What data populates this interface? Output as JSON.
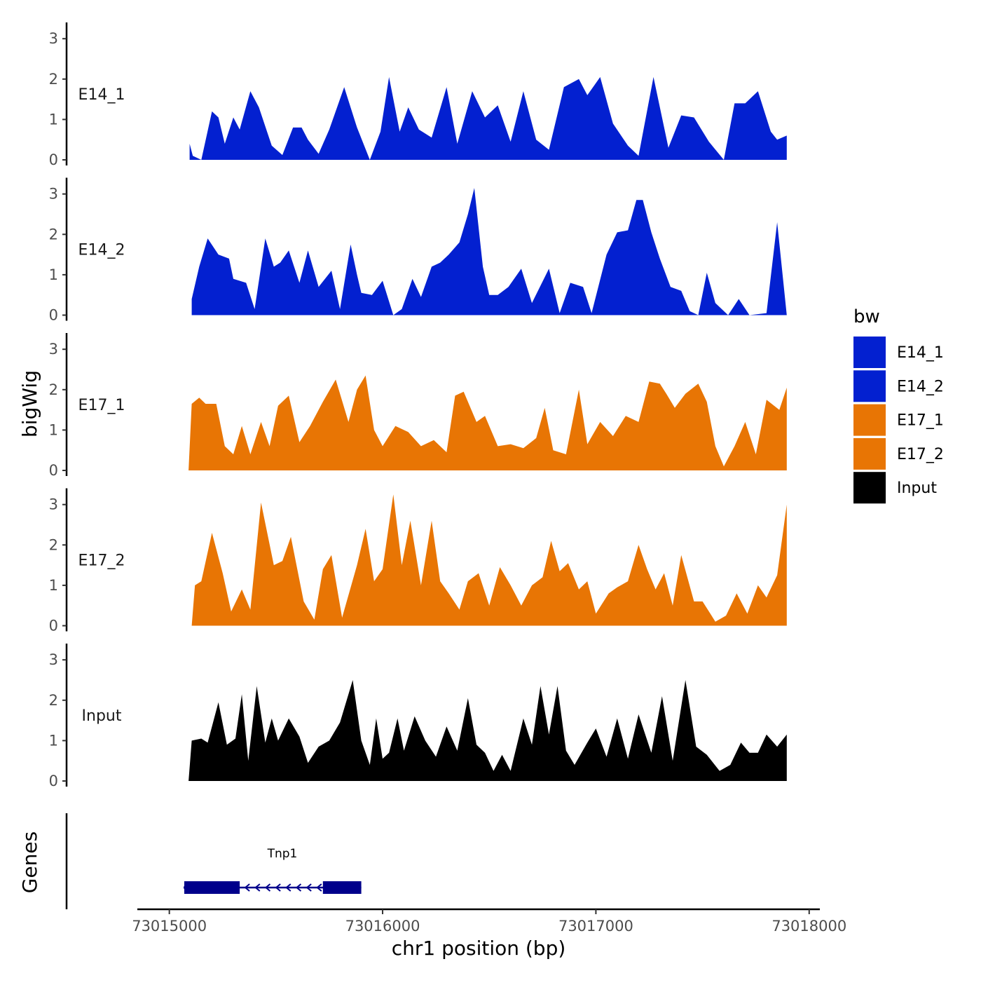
{
  "chart_data": {
    "type": "area",
    "y_axis_title": "bigWig",
    "x_axis_title": "chr1 position (bp)",
    "genes_axis_title": "Genes",
    "legend": {
      "title": "bw",
      "position": "right",
      "entries": [
        {
          "name": "E14_1",
          "color": "#0320d0"
        },
        {
          "name": "E14_2",
          "color": "#0320d0"
        },
        {
          "name": "E17_1",
          "color": "#e87504"
        },
        {
          "name": "E17_2",
          "color": "#e87504"
        },
        {
          "name": "Input",
          "color": "#000000"
        }
      ]
    },
    "ylim": [
      0,
      3.4
    ],
    "y_ticks": [
      "0",
      "1",
      "2",
      "3"
    ],
    "xlim": [
      73014850,
      73018050
    ],
    "x_ticks": [
      {
        "value": 73015000,
        "label": "73015000"
      },
      {
        "value": 73016000,
        "label": "73016000"
      },
      {
        "value": 73017000,
        "label": "73017000"
      },
      {
        "value": 73018000,
        "label": "73018000"
      }
    ],
    "tracks": [
      {
        "name": "E14_1",
        "color": "#0320d0",
        "x": [
          73015095,
          73015110,
          73015150,
          73015200,
          73015230,
          73015260,
          73015300,
          73015330,
          73015380,
          73015420,
          73015480,
          73015530,
          73015580,
          73015620,
          73015650,
          73015700,
          73015750,
          73015820,
          73015880,
          73015940,
          73015990,
          73016030,
          73016080,
          73016120,
          73016170,
          73016230,
          73016300,
          73016350,
          73016420,
          73016480,
          73016540,
          73016600,
          73016660,
          73016720,
          73016780,
          73016850,
          73016920,
          73016960,
          73017020,
          73017080,
          73017150,
          73017200,
          73017270,
          73017340,
          73017400,
          73017460,
          73017530,
          73017600,
          73017650,
          73017700,
          73017760,
          73017820,
          73017850,
          73017895
        ],
        "y": [
          0.4,
          0.1,
          0,
          1.2,
          1.05,
          0.4,
          1.05,
          0.75,
          1.7,
          1.3,
          0.35,
          0.12,
          0.8,
          0.8,
          0.5,
          0.15,
          0.75,
          1.8,
          0.8,
          0,
          0.7,
          2.05,
          0.7,
          1.3,
          0.75,
          0.55,
          1.8,
          0.4,
          1.7,
          1.05,
          1.35,
          0.45,
          1.7,
          0.5,
          0.25,
          1.8,
          2.0,
          1.6,
          2.05,
          0.9,
          0.35,
          0.1,
          2.05,
          0.3,
          1.1,
          1.05,
          0.45,
          0,
          1.4,
          1.4,
          1.7,
          0.7,
          0.5,
          0.6
        ]
      },
      {
        "name": "E14_2",
        "color": "#0320d0",
        "x": [
          73015105,
          73015140,
          73015180,
          73015230,
          73015280,
          73015300,
          73015360,
          73015400,
          73015450,
          73015490,
          73015520,
          73015560,
          73015610,
          73015650,
          73015700,
          73015760,
          73015800,
          73015850,
          73015880,
          73015900,
          73015950,
          73016000,
          73016050,
          73016090,
          73016140,
          73016180,
          73016230,
          73016270,
          73016310,
          73016360,
          73016400,
          73016430,
          73016470,
          73016500,
          73016540,
          73016590,
          73016650,
          73016700,
          73016780,
          73016830,
          73016880,
          73016940,
          73016980,
          73017050,
          73017100,
          73017150,
          73017190,
          73017220,
          73017260,
          73017300,
          73017350,
          73017400,
          73017440,
          73017480,
          73017520,
          73017560,
          73017620,
          73017670,
          73017720,
          73017800,
          73017850,
          73017895
        ],
        "y": [
          0.4,
          1.2,
          1.9,
          1.5,
          1.4,
          0.9,
          0.8,
          0.15,
          1.9,
          1.2,
          1.3,
          1.6,
          0.8,
          1.6,
          0.7,
          1.1,
          0.15,
          1.75,
          1.0,
          0.55,
          0.5,
          0.85,
          0,
          0.15,
          0.9,
          0.45,
          1.2,
          1.3,
          1.5,
          1.8,
          2.5,
          3.15,
          1.2,
          0.5,
          0.5,
          0.7,
          1.15,
          0.3,
          1.15,
          0.05,
          0.8,
          0.7,
          0.05,
          1.5,
          2.05,
          2.1,
          2.85,
          2.85,
          2.05,
          1.4,
          0.7,
          0.6,
          0.1,
          0,
          1.05,
          0.3,
          0,
          0.4,
          0,
          0.05,
          2.3,
          0
        ]
      },
      {
        "name": "E17_1",
        "color": "#e87504",
        "x": [
          73015090,
          73015105,
          73015140,
          73015170,
          73015220,
          73015260,
          73015300,
          73015340,
          73015380,
          73015430,
          73015470,
          73015510,
          73015560,
          73015610,
          73015660,
          73015720,
          73015780,
          73015840,
          73015880,
          73015920,
          73015960,
          73016000,
          73016060,
          73016120,
          73016180,
          73016240,
          73016300,
          73016340,
          73016380,
          73016440,
          73016480,
          73016540,
          73016600,
          73016660,
          73016720,
          73016760,
          73016800,
          73016860,
          73016920,
          73016960,
          73017020,
          73017080,
          73017140,
          73017200,
          73017250,
          73017300,
          73017330,
          73017370,
          73017420,
          73017480,
          73017520,
          73017560,
          73017600,
          73017650,
          73017700,
          73017750,
          73017800,
          73017860,
          73017895
        ],
        "y": [
          0,
          1.65,
          1.8,
          1.65,
          1.65,
          0.6,
          0.4,
          1.1,
          0.4,
          1.2,
          0.6,
          1.6,
          1.85,
          0.7,
          1.1,
          1.7,
          2.25,
          1.2,
          2.0,
          2.35,
          1.0,
          0.6,
          1.1,
          0.95,
          0.6,
          0.75,
          0.45,
          1.85,
          1.95,
          1.2,
          1.35,
          0.6,
          0.65,
          0.55,
          0.8,
          1.55,
          0.5,
          0.4,
          2.0,
          0.65,
          1.2,
          0.85,
          1.35,
          1.2,
          2.2,
          2.15,
          1.9,
          1.55,
          1.9,
          2.15,
          1.7,
          0.6,
          0.1,
          0.6,
          1.2,
          0.4,
          1.75,
          1.5,
          2.05
        ]
      },
      {
        "name": "E17_2",
        "color": "#e87504",
        "x": [
          73015105,
          73015120,
          73015150,
          73015200,
          73015250,
          73015290,
          73015340,
          73015380,
          73015430,
          73015490,
          73015530,
          73015570,
          73015630,
          73015680,
          73015720,
          73015760,
          73015810,
          73015880,
          73015920,
          73015960,
          73016000,
          73016050,
          73016090,
          73016130,
          73016180,
          73016230,
          73016270,
          73016310,
          73016360,
          73016400,
          73016450,
          73016500,
          73016550,
          73016600,
          73016650,
          73016700,
          73016750,
          73016790,
          73016830,
          73016870,
          73016920,
          73016960,
          73017000,
          73017060,
          73017100,
          73017150,
          73017200,
          73017240,
          73017280,
          73017320,
          73017360,
          73017400,
          73017460,
          73017500,
          73017560,
          73017610,
          73017660,
          73017710,
          73017760,
          73017800,
          73017850,
          73017895
        ],
        "y": [
          0,
          1.0,
          1.1,
          2.3,
          1.3,
          0.35,
          0.9,
          0.4,
          3.05,
          1.5,
          1.6,
          2.2,
          0.6,
          0.15,
          1.4,
          1.75,
          0.2,
          1.5,
          2.4,
          1.1,
          1.4,
          3.25,
          1.5,
          2.6,
          1.0,
          2.6,
          1.1,
          0.8,
          0.4,
          1.1,
          1.3,
          0.5,
          1.45,
          1.0,
          0.5,
          1.0,
          1.2,
          2.1,
          1.35,
          1.55,
          0.9,
          1.1,
          0.3,
          0.8,
          0.95,
          1.1,
          2.0,
          1.4,
          0.9,
          1.3,
          0.5,
          1.75,
          0.6,
          0.6,
          0.1,
          0.25,
          0.8,
          0.3,
          1.0,
          0.7,
          1.25,
          3.0
        ]
      },
      {
        "name": "Input",
        "color": "#000000",
        "x": [
          73015090,
          73015105,
          73015150,
          73015180,
          73015230,
          73015270,
          73015310,
          73015340,
          73015370,
          73015410,
          73015450,
          73015480,
          73015510,
          73015560,
          73015610,
          73015650,
          73015700,
          73015750,
          73015800,
          73015860,
          73015900,
          73015940,
          73015970,
          73016000,
          73016030,
          73016070,
          73016100,
          73016150,
          73016200,
          73016250,
          73016300,
          73016350,
          73016400,
          73016440,
          73016480,
          73016520,
          73016560,
          73016600,
          73016660,
          73016700,
          73016740,
          73016780,
          73016820,
          73016860,
          73016900,
          73016960,
          73017000,
          73017050,
          73017100,
          73017150,
          73017200,
          73017260,
          73017310,
          73017360,
          73017420,
          73017470,
          73017520,
          73017580,
          73017630,
          73017680,
          73017720,
          73017760,
          73017800,
          73017850,
          73017895
        ],
        "y": [
          0,
          1.0,
          1.05,
          0.95,
          1.95,
          0.9,
          1.05,
          2.15,
          0.5,
          2.35,
          0.95,
          1.55,
          1.0,
          1.55,
          1.1,
          0.45,
          0.85,
          1.0,
          1.45,
          2.5,
          1.0,
          0.4,
          1.55,
          0.55,
          0.7,
          1.55,
          0.75,
          1.6,
          1.0,
          0.6,
          1.35,
          0.75,
          2.05,
          0.9,
          0.7,
          0.25,
          0.65,
          0.25,
          1.55,
          0.9,
          2.35,
          1.15,
          2.35,
          0.75,
          0.4,
          0.95,
          1.3,
          0.6,
          1.55,
          0.55,
          1.65,
          0.7,
          2.1,
          0.5,
          2.5,
          0.85,
          0.65,
          0.25,
          0.4,
          0.95,
          0.7,
          0.7,
          1.15,
          0.85,
          1.15
        ]
      }
    ],
    "genes": [
      {
        "name": "Tnp1",
        "strand": "-",
        "start": 73015070,
        "end": 73015900,
        "exons": [
          {
            "start": 73015070,
            "end": 73015330
          },
          {
            "start": 73015720,
            "end": 73015900
          }
        ]
      }
    ]
  }
}
